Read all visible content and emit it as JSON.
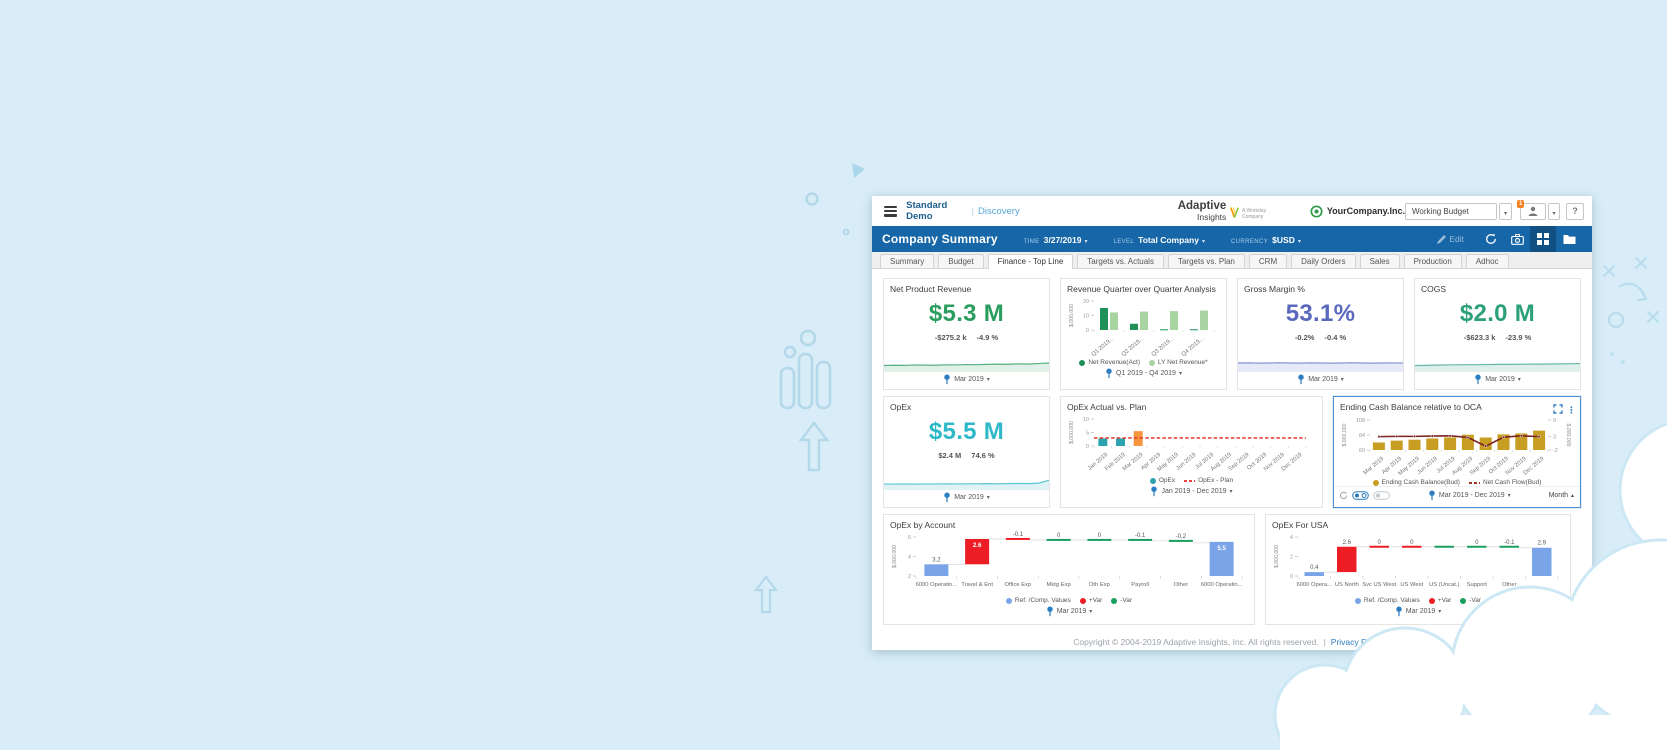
{
  "topbar": {
    "brand": "Standard Demo",
    "brand_divider": "|",
    "product": "Discovery",
    "logo_line1": "Adaptive",
    "logo_line2": "Insights",
    "logo_tagline": "A Workday Company",
    "company": "YourCompany.Inc.",
    "budget_select": "Working Budget",
    "badge": "1",
    "help": "?"
  },
  "header": {
    "title": "Company Summary",
    "time_label": "TIME",
    "time_value": "3/27/2019",
    "level_label": "LEVEL",
    "level_value": "Total Company",
    "currency_label": "CURRENCY",
    "currency_value": "$USD",
    "edit": "Edit"
  },
  "tabs": [
    "Summary",
    "Budget",
    "Finance - Top Line",
    "Targets vs. Actuals",
    "Targets vs. Plan",
    "CRM",
    "Daily Orders",
    "Sales",
    "Production",
    "Adhoc"
  ],
  "active_tab": "Finance - Top Line",
  "accent": {
    "pin_blue": "#2d7dc1",
    "selected_border": "#4d90d0",
    "header_blue": "#1767a8"
  },
  "kpi_tiles": [
    {
      "title": "Net Product Revenue",
      "value": "$5.3 M",
      "delta1": "-$275.2 k",
      "delta2": "-4.9 %",
      "color": "#2b9e5f",
      "spark_color": "#57b183",
      "spark_fill": "#e2f1e8",
      "pin": "Mar 2019",
      "spark": [
        3.2,
        3.4,
        3.3,
        3.6,
        3.5,
        3.4,
        3.7,
        3.6,
        3.9,
        3.8,
        4.0,
        4.2,
        4.1,
        4.4,
        4.3,
        4.6,
        5.0
      ]
    },
    {
      "title": "Gross Margin %",
      "value": "53.1%",
      "delta1": "-0.2%",
      "delta2": "-0.4 %",
      "color": "#5a68bd",
      "spark_color": "#8a96d6",
      "spark_fill": "#e6e9f7",
      "pin": "Mar 2019",
      "spark": [
        5.0,
        5.1,
        4.9,
        5.0,
        5.2,
        5.0,
        4.9,
        5.1,
        5.0,
        4.9,
        5.0,
        5.2,
        5.0,
        4.9,
        5.0,
        5.1,
        5.0
      ]
    },
    {
      "title": "COGS",
      "value": "$2.0 M",
      "delta1": "-$623.3 k",
      "delta2": "-23.9 %",
      "color": "#2ba07a",
      "spark_color": "#66b7a8",
      "spark_fill": "#dff0ec",
      "pin": "Mar 2019",
      "spark": [
        3.2,
        3.3,
        3.5,
        3.6,
        3.7,
        3.8,
        3.8,
        3.9,
        4.0,
        4.0,
        4.1,
        4.2,
        4.2,
        4.3,
        4.4,
        4.5,
        4.6
      ]
    },
    {
      "title": "OpEx",
      "value": "$5.5 M",
      "delta1": "$2.4 M",
      "delta2": "74.6 %",
      "color": "#2fb9c8",
      "spark_color": "#5bc4d2",
      "spark_fill": "#dff3f6",
      "pin": "Mar 2019",
      "spark": [
        2.8,
        2.8,
        2.9,
        2.8,
        2.9,
        2.9,
        3.0,
        2.9,
        3.0,
        3.0,
        3.1,
        3.0,
        3.1,
        3.2,
        3.1,
        3.5,
        5.5
      ]
    }
  ],
  "charts": {
    "qoq": {
      "title": "Revenue Quarter over Quarter Analysis",
      "type": "grouped_bar",
      "y_label": "$,000,000",
      "y_ticks": [
        0,
        10,
        20
      ],
      "y_max": 20,
      "categories": [
        "Q1 2019...",
        "Q2 2019...",
        "Q3 2019...",
        "Q4 2019..."
      ],
      "series": [
        {
          "name": "Net Revenue(Act)",
          "color": "#1f9158",
          "values": [
            15.2,
            4.3,
            0.5,
            0.5
          ]
        },
        {
          "name": "LY Net Revenue*",
          "color": "#a7d4a0",
          "values": [
            12.1,
            12.7,
            13.0,
            13.4
          ]
        }
      ],
      "legend": [
        {
          "label": "Net Revenue(Act)",
          "color": "#1f9158",
          "marker": "dot"
        },
        {
          "label": "LY Net Revenue*",
          "color": "#a7d4a0",
          "marker": "dot"
        }
      ],
      "pin": "Q1 2019 - Q4 2019"
    },
    "opex_avp": {
      "title": "OpEx Actual vs. Plan",
      "type": "bar_line",
      "y_label": "$,000,000",
      "y_ticks": [
        0,
        5,
        10
      ],
      "y_max": 10,
      "categories": [
        "Jan 2019",
        "Feb 2019",
        "Mar 2019",
        "Apr 2019",
        "May 2019",
        "Jun 2019",
        "Jul 2019",
        "Aug 2019",
        "Sep 2019",
        "Oct 2019",
        "Nov 2019",
        "Dec 2019"
      ],
      "bar_values": [
        2.8,
        2.8,
        5.5,
        0,
        0,
        0,
        0,
        0,
        0,
        0,
        0,
        0
      ],
      "bar_colors": [
        "#2ba3ae",
        "#2ba3ae",
        "#f6953e",
        "",
        "",
        "",
        "",
        "",
        "",
        "",
        "",
        ""
      ],
      "plan_value": 3,
      "plan_color": "#e8453c",
      "legend": [
        {
          "label": "OpEx",
          "color": "#2ba3ae",
          "marker": "dot"
        },
        {
          "label": "OpEx - Plan",
          "color": "#e8453c",
          "marker": "dash"
        }
      ],
      "pin": "Jan 2019 - Dec 2019"
    },
    "ending_cash": {
      "title": "Ending Cash Balance relative to OCA",
      "type": "dual_axis",
      "left_label": "$,000,000",
      "left_ticks": [
        60,
        84,
        108
      ],
      "left_min": 60,
      "left_max": 108,
      "right_label": "$,000,000",
      "right_ticks": [
        9,
        3,
        -2
      ],
      "right_min": -2,
      "right_max": 9,
      "categories": [
        "Mar 2019",
        "Apr 2019",
        "May 2019",
        "Jun 2019",
        "Jul 2019",
        "Aug 2019",
        "Sep 2019",
        "Oct 2019",
        "Nov 2019",
        "Dec 2019"
      ],
      "bar_values": [
        72,
        75,
        76.5,
        78.5,
        80,
        84.5,
        80,
        85,
        86.5,
        91
      ],
      "bar_color": "#c79d22",
      "line_values": [
        2.9,
        3.0,
        3.0,
        3.1,
        3.2,
        2.6,
        -0.6,
        2.7,
        3.2,
        2.9
      ],
      "line_color": "#7a2420",
      "legend": [
        {
          "label": "Ending Cash Balance(Bud)",
          "color": "#c79d22",
          "marker": "dot"
        },
        {
          "label": "Net Cash Flow(Bud)",
          "color": "#a93226",
          "marker": "dash"
        }
      ],
      "pin": "Mar 2019 - Dec 2019",
      "sort_label": "Month"
    },
    "opex_by_account": {
      "title": "OpEx by Account",
      "type": "waterfall",
      "y_label": "$,000,000",
      "y_ticks": [
        2,
        4,
        6
      ],
      "y_min": 2,
      "y_max": 6,
      "steps": [
        {
          "cat": "6000 Operatin...",
          "label": "3.2",
          "from": 2,
          "to": 3.2,
          "color": "#79a5e8",
          "label_pos": "above"
        },
        {
          "cat": "Travel & Ent",
          "label": "2.6",
          "from": 3.2,
          "to": 5.8,
          "color": "#ec1d25",
          "label_pos": "in"
        },
        {
          "cat": "Office Exp",
          "label": "-0.1",
          "from": 5.8,
          "to": 5.7,
          "color": "#ec1d25",
          "label_pos": "above"
        },
        {
          "cat": "Mktg Exp",
          "label": "0",
          "from": 5.7,
          "to": 5.7,
          "color": "#17a05e",
          "label_pos": "above"
        },
        {
          "cat": "Oth Exp",
          "label": "0",
          "from": 5.7,
          "to": 5.7,
          "color": "#17a05e",
          "label_pos": "above"
        },
        {
          "cat": "Payroll",
          "label": "-0.1",
          "from": 5.7,
          "to": 5.6,
          "color": "#17a05e",
          "label_pos": "above"
        },
        {
          "cat": "Other",
          "label": "-0.2",
          "from": 5.6,
          "to": 5.4,
          "color": "#17a05e",
          "label_pos": "above"
        },
        {
          "cat": "6000 Operatin...",
          "label": "5.5",
          "from": 2,
          "to": 5.5,
          "color": "#79a5e8",
          "label_pos": "in"
        }
      ],
      "legend": [
        {
          "label": "Ref. /Comp. Values",
          "color": "#79a5e8",
          "marker": "dot"
        },
        {
          "label": "+Var",
          "color": "#ec1d25",
          "marker": "dot"
        },
        {
          "label": "-Var",
          "color": "#17a05e",
          "marker": "dot"
        }
      ],
      "pin": "Mar 2019"
    },
    "opex_usa": {
      "title": "OpEx For USA",
      "type": "waterfall",
      "y_label": "$,000,000",
      "y_ticks": [
        0,
        2,
        4
      ],
      "y_min": 0,
      "y_max": 4,
      "steps": [
        {
          "cat": "6000 Opera...",
          "label": "0.4",
          "from": 0,
          "to": 0.4,
          "color": "#79a5e8",
          "label_pos": "above"
        },
        {
          "cat": "US North",
          "label": "2.6",
          "from": 0.4,
          "to": 3.0,
          "color": "#ec1d25",
          "label_pos": "above"
        },
        {
          "cat": "Svc US West",
          "label": "0",
          "from": 3.0,
          "to": 3.0,
          "color": "#ec1d25",
          "label_pos": "above"
        },
        {
          "cat": "US West",
          "label": "0",
          "from": 3.0,
          "to": 3.0,
          "color": "#ec1d25",
          "label_pos": "above"
        },
        {
          "cat": "US (Uncat.)",
          "label": "",
          "from": 3.0,
          "to": 3.0,
          "color": "#17a05e",
          "label_pos": "above"
        },
        {
          "cat": "Support",
          "label": "0",
          "from": 3.0,
          "to": 3.0,
          "color": "#17a05e",
          "label_pos": "above"
        },
        {
          "cat": "Other",
          "label": "-0.1",
          "from": 3.0,
          "to": 2.9,
          "color": "#17a05e",
          "label_pos": "above"
        },
        {
          "cat": "",
          "label": "2.9",
          "from": 0,
          "to": 2.9,
          "color": "#79a5e8",
          "label_pos": "above"
        }
      ],
      "legend": [
        {
          "label": "Ref. /Comp. Values",
          "color": "#79a5e8",
          "marker": "dot"
        },
        {
          "label": "+Var",
          "color": "#ec1d25",
          "marker": "dot"
        },
        {
          "label": "-Var",
          "color": "#17a05e",
          "marker": "dot"
        }
      ],
      "pin": "Mar 2019"
    }
  },
  "footer": {
    "copyright": "Copyright © 2004-2019 Adaptive Insights, Inc. All rights reserved.",
    "divider": "|",
    "privacy": "Privacy Policy »"
  }
}
